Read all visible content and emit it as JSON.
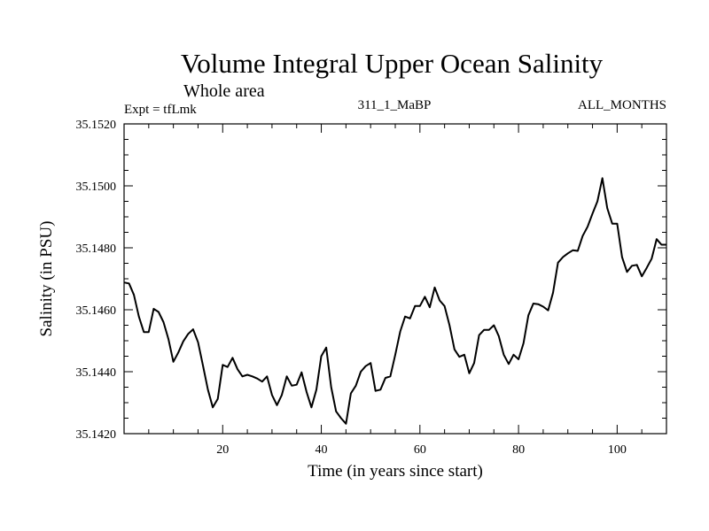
{
  "chart_data": {
    "type": "line",
    "title": "Volume Integral Upper Ocean Salinity",
    "subtitle": "Whole area",
    "expt_label": "Expt = tfLmk",
    "run_label": "311_1_MaBP",
    "months_label": "ALL_MONTHS",
    "xlabel": "Time (in years since start)",
    "ylabel": "Salinity (in PSU)",
    "xlim": [
      0,
      110
    ],
    "ylim": [
      35.142,
      35.152
    ],
    "xticks": [
      20,
      40,
      60,
      80,
      100
    ],
    "yticks": [
      35.142,
      35.144,
      35.146,
      35.148,
      35.15,
      35.152
    ],
    "ytick_labels": [
      "35.1420",
      "35.1440",
      "35.1460",
      "35.1480",
      "35.1500",
      "35.1520"
    ],
    "grid": false,
    "series": [
      {
        "name": "salinity",
        "color": "#000000",
        "x": [
          0,
          1,
          2,
          3,
          4,
          5,
          6,
          7,
          8,
          9,
          10,
          11,
          12,
          13,
          14,
          15,
          16,
          17,
          18,
          19,
          20,
          21,
          22,
          23,
          24,
          25,
          26,
          27,
          28,
          29,
          30,
          31,
          32,
          33,
          34,
          35,
          36,
          37,
          38,
          39,
          40,
          41,
          42,
          43,
          44,
          45,
          46,
          47,
          48,
          49,
          50,
          51,
          52,
          53,
          54,
          55,
          56,
          57,
          58,
          59,
          60,
          61,
          62,
          63,
          64,
          65,
          66,
          67,
          68,
          69,
          70,
          71,
          72,
          73,
          74,
          75,
          76,
          77,
          78,
          79,
          80,
          81,
          82,
          83,
          84,
          85,
          86,
          87,
          88,
          89,
          90,
          91,
          92,
          93,
          94,
          95,
          96,
          97,
          98,
          99,
          100,
          101,
          102,
          103,
          104,
          105,
          106,
          107,
          108,
          109,
          110
        ],
        "y": [
          35.14688,
          35.14685,
          35.14648,
          35.14578,
          35.14528,
          35.14528,
          35.14603,
          35.14593,
          35.1456,
          35.14505,
          35.14432,
          35.14462,
          35.14498,
          35.14522,
          35.14537,
          35.14495,
          35.1442,
          35.14342,
          35.14285,
          35.14312,
          35.14422,
          35.14415,
          35.14445,
          35.14408,
          35.14385,
          35.1439,
          35.14385,
          35.14378,
          35.14368,
          35.14385,
          35.14325,
          35.14292,
          35.14325,
          35.14385,
          35.14355,
          35.14358,
          35.14398,
          35.14335,
          35.14285,
          35.14342,
          35.1445,
          35.14478,
          35.1435,
          35.14272,
          35.1425,
          35.14232,
          35.1433,
          35.14355,
          35.144,
          35.14418,
          35.14428,
          35.14338,
          35.14342,
          35.1438,
          35.14385,
          35.14455,
          35.1453,
          35.14578,
          35.14572,
          35.14612,
          35.14612,
          35.14642,
          35.14608,
          35.14672,
          35.1463,
          35.14612,
          35.1455,
          35.14472,
          35.14448,
          35.14455,
          35.14395,
          35.14428,
          35.14518,
          35.14535,
          35.14535,
          35.1455,
          35.14515,
          35.14455,
          35.14425,
          35.14455,
          35.1444,
          35.14492,
          35.14582,
          35.1462,
          35.14618,
          35.1461,
          35.14598,
          35.14655,
          35.14752,
          35.1477,
          35.14782,
          35.14792,
          35.1479,
          35.14838,
          35.14868,
          35.1491,
          35.1495,
          35.15025,
          35.14928,
          35.14878,
          35.14878,
          35.1477,
          35.14722,
          35.14742,
          35.14745,
          35.14708,
          35.14735,
          35.14765,
          35.14828,
          35.1481,
          35.1481
        ]
      }
    ]
  }
}
